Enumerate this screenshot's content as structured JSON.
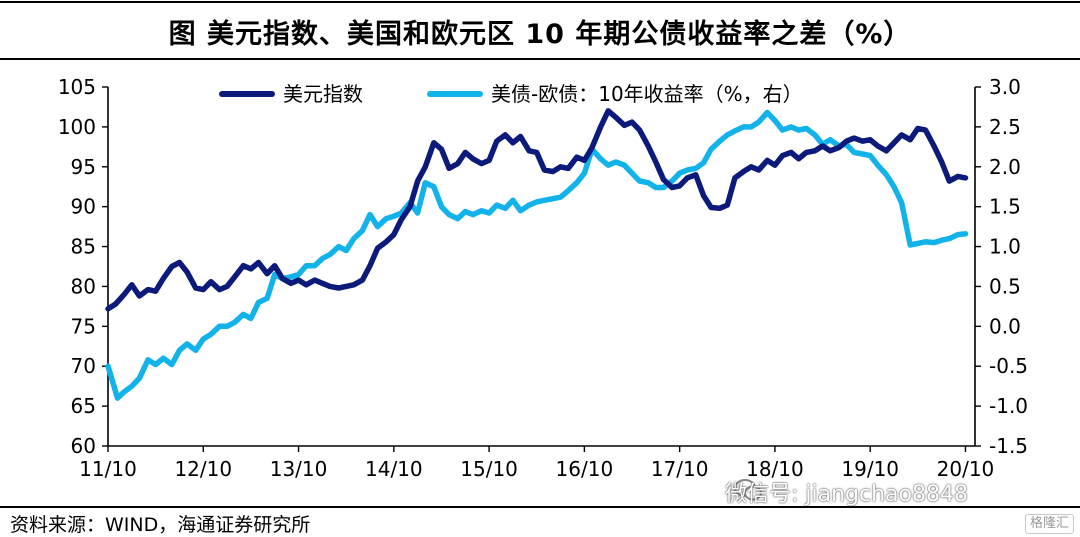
{
  "header": {
    "title": "图  美元指数、美国和欧元区 10 年期公债收益率之差（%）"
  },
  "footer": {
    "source": "资料来源：WIND，海通证券研究所"
  },
  "watermark": {
    "text": "微信号: jiangchao8848",
    "icon": "wechat-icon"
  },
  "brand": {
    "text": "格隆汇",
    "icon": "brand-logo-icon"
  },
  "colors": {
    "dxy": "#0c1a7c",
    "spread": "#12b2ea",
    "axis": "#000000"
  },
  "chart_data": {
    "type": "line",
    "title": "美元指数、美国和欧元区 10 年期公债收益率之差（%）",
    "x_unit": "years since 2011-10",
    "x_ticks": [
      {
        "x": 0,
        "label": "11/10"
      },
      {
        "x": 1,
        "label": "12/10"
      },
      {
        "x": 2,
        "label": "13/10"
      },
      {
        "x": 3,
        "label": "14/10"
      },
      {
        "x": 4,
        "label": "15/10"
      },
      {
        "x": 5,
        "label": "16/10"
      },
      {
        "x": 6,
        "label": "17/10"
      },
      {
        "x": 7,
        "label": "18/10"
      },
      {
        "x": 8,
        "label": "19/10"
      },
      {
        "x": 9,
        "label": "20/10"
      }
    ],
    "xlim": [
      0,
      9.1
    ],
    "y_left": {
      "ylim": [
        60,
        105
      ],
      "ticks": [
        60,
        65,
        70,
        75,
        80,
        85,
        90,
        95,
        100,
        105
      ]
    },
    "y_right": {
      "ylim": [
        -1.5,
        3.0
      ],
      "ticks": [
        "-1.5",
        "-1.0",
        "-0.5",
        "0.0",
        "0.5",
        "1.0",
        "1.5",
        "2.0",
        "2.5",
        "3.0"
      ]
    },
    "legend_position": "top-center",
    "series": [
      {
        "name": "美元指数",
        "axis": "left",
        "color": "#0c1a7c",
        "points": [
          [
            0.0,
            77.2
          ],
          [
            0.08,
            77.8
          ],
          [
            0.17,
            79.0
          ],
          [
            0.25,
            80.2
          ],
          [
            0.33,
            78.8
          ],
          [
            0.42,
            79.6
          ],
          [
            0.5,
            79.4
          ],
          [
            0.58,
            81.0
          ],
          [
            0.67,
            82.5
          ],
          [
            0.75,
            83.0
          ],
          [
            0.83,
            81.8
          ],
          [
            0.92,
            79.8
          ],
          [
            1.0,
            79.6
          ],
          [
            1.08,
            80.6
          ],
          [
            1.17,
            79.6
          ],
          [
            1.25,
            80.0
          ],
          [
            1.33,
            81.2
          ],
          [
            1.42,
            82.6
          ],
          [
            1.5,
            82.2
          ],
          [
            1.58,
            83.0
          ],
          [
            1.67,
            81.6
          ],
          [
            1.75,
            82.6
          ],
          [
            1.83,
            81.0
          ],
          [
            1.92,
            80.4
          ],
          [
            2.0,
            80.8
          ],
          [
            2.08,
            80.2
          ],
          [
            2.17,
            80.8
          ],
          [
            2.25,
            80.4
          ],
          [
            2.33,
            80.0
          ],
          [
            2.42,
            79.8
          ],
          [
            2.5,
            80.0
          ],
          [
            2.58,
            80.2
          ],
          [
            2.67,
            80.8
          ],
          [
            2.75,
            82.6
          ],
          [
            2.83,
            84.8
          ],
          [
            2.92,
            85.6
          ],
          [
            3.0,
            86.5
          ],
          [
            3.08,
            88.4
          ],
          [
            3.17,
            90.0
          ],
          [
            3.25,
            93.2
          ],
          [
            3.33,
            95.0
          ],
          [
            3.42,
            98.0
          ],
          [
            3.5,
            97.2
          ],
          [
            3.58,
            94.8
          ],
          [
            3.67,
            95.4
          ],
          [
            3.75,
            96.8
          ],
          [
            3.83,
            96.0
          ],
          [
            3.92,
            95.4
          ],
          [
            4.0,
            95.8
          ],
          [
            4.08,
            98.2
          ],
          [
            4.17,
            99.0
          ],
          [
            4.25,
            98.0
          ],
          [
            4.33,
            98.8
          ],
          [
            4.42,
            97.0
          ],
          [
            4.5,
            96.8
          ],
          [
            4.58,
            94.6
          ],
          [
            4.67,
            94.4
          ],
          [
            4.75,
            95.0
          ],
          [
            4.83,
            94.8
          ],
          [
            4.92,
            96.2
          ],
          [
            5.0,
            95.8
          ],
          [
            5.08,
            97.4
          ],
          [
            5.17,
            100.0
          ],
          [
            5.25,
            102.0
          ],
          [
            5.33,
            101.2
          ],
          [
            5.42,
            100.2
          ],
          [
            5.5,
            100.6
          ],
          [
            5.58,
            99.6
          ],
          [
            5.67,
            97.6
          ],
          [
            5.75,
            95.6
          ],
          [
            5.83,
            93.4
          ],
          [
            5.92,
            92.4
          ],
          [
            6.0,
            92.6
          ],
          [
            6.08,
            93.6
          ],
          [
            6.17,
            94.0
          ],
          [
            6.25,
            91.4
          ],
          [
            6.33,
            89.9
          ],
          [
            6.42,
            89.8
          ],
          [
            6.5,
            90.2
          ],
          [
            6.58,
            93.6
          ],
          [
            6.67,
            94.4
          ],
          [
            6.75,
            95.0
          ],
          [
            6.83,
            94.6
          ],
          [
            6.92,
            95.8
          ],
          [
            7.0,
            95.2
          ],
          [
            7.08,
            96.4
          ],
          [
            7.17,
            96.8
          ],
          [
            7.25,
            96.0
          ],
          [
            7.33,
            96.8
          ],
          [
            7.42,
            97.0
          ],
          [
            7.5,
            97.6
          ],
          [
            7.58,
            97.0
          ],
          [
            7.67,
            97.4
          ],
          [
            7.75,
            98.2
          ],
          [
            7.83,
            98.6
          ],
          [
            7.92,
            98.2
          ],
          [
            8.0,
            98.4
          ],
          [
            8.08,
            97.6
          ],
          [
            8.17,
            97.0
          ],
          [
            8.25,
            98.0
          ],
          [
            8.33,
            99.0
          ],
          [
            8.42,
            98.4
          ],
          [
            8.5,
            99.8
          ],
          [
            8.58,
            99.6
          ],
          [
            8.67,
            97.6
          ],
          [
            8.75,
            95.6
          ],
          [
            8.83,
            93.2
          ],
          [
            8.92,
            93.8
          ],
          [
            9.0,
            93.6
          ]
        ]
      },
      {
        "name": "美债-欧债：10年收益率（%，右）",
        "axis": "right",
        "color": "#12b2ea",
        "points": [
          [
            0.0,
            -0.5
          ],
          [
            0.05,
            -0.7
          ],
          [
            0.1,
            -0.9
          ],
          [
            0.17,
            -0.82
          ],
          [
            0.25,
            -0.75
          ],
          [
            0.33,
            -0.65
          ],
          [
            0.42,
            -0.42
          ],
          [
            0.5,
            -0.48
          ],
          [
            0.58,
            -0.4
          ],
          [
            0.67,
            -0.48
          ],
          [
            0.75,
            -0.3
          ],
          [
            0.83,
            -0.22
          ],
          [
            0.92,
            -0.3
          ],
          [
            1.0,
            -0.16
          ],
          [
            1.08,
            -0.1
          ],
          [
            1.17,
            0.0
          ],
          [
            1.25,
            0.0
          ],
          [
            1.33,
            0.05
          ],
          [
            1.42,
            0.15
          ],
          [
            1.5,
            0.1
          ],
          [
            1.58,
            0.3
          ],
          [
            1.67,
            0.35
          ],
          [
            1.75,
            0.65
          ],
          [
            1.83,
            0.6
          ],
          [
            1.92,
            0.62
          ],
          [
            2.0,
            0.65
          ],
          [
            2.08,
            0.76
          ],
          [
            2.17,
            0.76
          ],
          [
            2.25,
            0.85
          ],
          [
            2.33,
            0.9
          ],
          [
            2.42,
            1.0
          ],
          [
            2.5,
            0.95
          ],
          [
            2.58,
            1.1
          ],
          [
            2.67,
            1.2
          ],
          [
            2.75,
            1.4
          ],
          [
            2.83,
            1.25
          ],
          [
            2.92,
            1.35
          ],
          [
            3.0,
            1.38
          ],
          [
            3.08,
            1.42
          ],
          [
            3.17,
            1.55
          ],
          [
            3.25,
            1.42
          ],
          [
            3.33,
            1.8
          ],
          [
            3.42,
            1.75
          ],
          [
            3.5,
            1.5
          ],
          [
            3.58,
            1.4
          ],
          [
            3.67,
            1.35
          ],
          [
            3.75,
            1.44
          ],
          [
            3.83,
            1.4
          ],
          [
            3.92,
            1.45
          ],
          [
            4.0,
            1.42
          ],
          [
            4.08,
            1.52
          ],
          [
            4.17,
            1.48
          ],
          [
            4.25,
            1.58
          ],
          [
            4.33,
            1.45
          ],
          [
            4.42,
            1.52
          ],
          [
            4.5,
            1.56
          ],
          [
            4.58,
            1.58
          ],
          [
            4.67,
            1.6
          ],
          [
            4.75,
            1.62
          ],
          [
            4.83,
            1.7
          ],
          [
            4.92,
            1.8
          ],
          [
            5.0,
            1.92
          ],
          [
            5.08,
            2.22
          ],
          [
            5.17,
            2.1
          ],
          [
            5.25,
            2.02
          ],
          [
            5.33,
            2.06
          ],
          [
            5.42,
            2.02
          ],
          [
            5.5,
            1.92
          ],
          [
            5.58,
            1.82
          ],
          [
            5.67,
            1.8
          ],
          [
            5.75,
            1.74
          ],
          [
            5.83,
            1.74
          ],
          [
            5.92,
            1.82
          ],
          [
            6.0,
            1.92
          ],
          [
            6.08,
            1.96
          ],
          [
            6.17,
            1.98
          ],
          [
            6.25,
            2.05
          ],
          [
            6.33,
            2.22
          ],
          [
            6.42,
            2.32
          ],
          [
            6.5,
            2.4
          ],
          [
            6.58,
            2.45
          ],
          [
            6.67,
            2.5
          ],
          [
            6.75,
            2.5
          ],
          [
            6.83,
            2.56
          ],
          [
            6.92,
            2.68
          ],
          [
            7.0,
            2.58
          ],
          [
            7.08,
            2.46
          ],
          [
            7.17,
            2.5
          ],
          [
            7.25,
            2.46
          ],
          [
            7.33,
            2.48
          ],
          [
            7.42,
            2.4
          ],
          [
            7.5,
            2.28
          ],
          [
            7.58,
            2.34
          ],
          [
            7.67,
            2.26
          ],
          [
            7.75,
            2.28
          ],
          [
            7.83,
            2.18
          ],
          [
            7.92,
            2.16
          ],
          [
            8.0,
            2.14
          ],
          [
            8.08,
            2.02
          ],
          [
            8.17,
            1.9
          ],
          [
            8.25,
            1.75
          ],
          [
            8.33,
            1.55
          ],
          [
            8.42,
            1.02
          ],
          [
            8.5,
            1.04
          ],
          [
            8.58,
            1.06
          ],
          [
            8.67,
            1.05
          ],
          [
            8.75,
            1.08
          ],
          [
            8.83,
            1.1
          ],
          [
            8.92,
            1.15
          ],
          [
            9.0,
            1.16
          ]
        ]
      }
    ]
  }
}
